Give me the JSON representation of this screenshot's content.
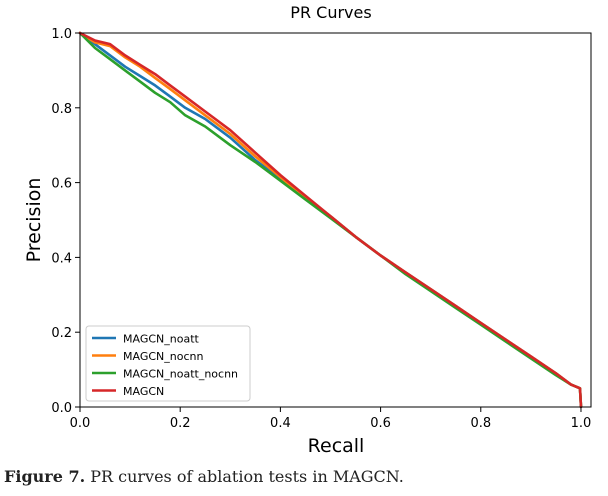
{
  "caption": {
    "label": "Figure 7.",
    "text": " PR curves of ablation tests in MAGCN."
  },
  "chart_data": {
    "type": "line",
    "title": "PR Curves",
    "xlabel": "Recall",
    "ylabel": "Precision",
    "xlim": [
      0,
      1.02
    ],
    "ylim": [
      0,
      1.0
    ],
    "xticks": [
      0.0,
      0.2,
      0.4,
      0.6,
      0.8,
      1.0
    ],
    "yticks": [
      0.0,
      0.2,
      0.4,
      0.6,
      0.8,
      1.0
    ],
    "xtick_labels": [
      "0.0",
      "0.2",
      "0.4",
      "0.6",
      "0.8",
      "1.0"
    ],
    "ytick_labels": [
      "0.0",
      "0.2",
      "0.4",
      "0.6",
      "0.8",
      "1.0"
    ],
    "legend_position": "lower-left",
    "grid": false,
    "series": [
      {
        "name": "MAGCN_noatt",
        "color": "#1f77b4",
        "x": [
          0.0,
          0.03,
          0.06,
          0.09,
          0.12,
          0.15,
          0.18,
          0.21,
          0.25,
          0.3,
          0.35,
          0.4,
          0.45,
          0.5,
          0.55,
          0.6,
          0.65,
          0.7,
          0.75,
          0.8,
          0.85,
          0.9,
          0.95,
          0.98,
          0.998,
          1.0
        ],
        "y": [
          1.0,
          0.97,
          0.94,
          0.91,
          0.885,
          0.86,
          0.83,
          0.8,
          0.77,
          0.72,
          0.66,
          0.61,
          0.56,
          0.51,
          0.455,
          0.405,
          0.36,
          0.315,
          0.27,
          0.225,
          0.18,
          0.135,
          0.09,
          0.06,
          0.05,
          0.0
        ]
      },
      {
        "name": "MAGCN_nocnn",
        "color": "#ff7f0e",
        "x": [
          0.0,
          0.03,
          0.06,
          0.09,
          0.12,
          0.15,
          0.18,
          0.21,
          0.25,
          0.3,
          0.35,
          0.4,
          0.45,
          0.5,
          0.55,
          0.6,
          0.65,
          0.7,
          0.75,
          0.8,
          0.85,
          0.9,
          0.95,
          0.98,
          0.998,
          1.0
        ],
        "y": [
          1.0,
          0.975,
          0.965,
          0.935,
          0.91,
          0.88,
          0.85,
          0.82,
          0.78,
          0.73,
          0.67,
          0.615,
          0.56,
          0.51,
          0.455,
          0.405,
          0.36,
          0.315,
          0.27,
          0.225,
          0.18,
          0.135,
          0.09,
          0.06,
          0.05,
          0.0
        ]
      },
      {
        "name": "MAGCN_noatt_nocnn",
        "color": "#2ca02c",
        "x": [
          0.0,
          0.03,
          0.06,
          0.09,
          0.12,
          0.15,
          0.18,
          0.21,
          0.25,
          0.3,
          0.35,
          0.4,
          0.45,
          0.5,
          0.55,
          0.6,
          0.65,
          0.7,
          0.75,
          0.8,
          0.85,
          0.9,
          0.95,
          0.98,
          0.998,
          1.0
        ],
        "y": [
          1.0,
          0.96,
          0.93,
          0.9,
          0.87,
          0.84,
          0.815,
          0.78,
          0.75,
          0.7,
          0.655,
          0.605,
          0.555,
          0.505,
          0.455,
          0.405,
          0.355,
          0.31,
          0.265,
          0.22,
          0.175,
          0.13,
          0.085,
          0.06,
          0.05,
          0.0
        ]
      },
      {
        "name": "MAGCN",
        "color": "#d62728",
        "x": [
          0.0,
          0.03,
          0.06,
          0.09,
          0.12,
          0.15,
          0.18,
          0.21,
          0.25,
          0.3,
          0.35,
          0.4,
          0.45,
          0.5,
          0.55,
          0.6,
          0.65,
          0.7,
          0.75,
          0.8,
          0.85,
          0.9,
          0.95,
          0.98,
          0.998,
          1.0
        ],
        "y": [
          1.0,
          0.98,
          0.97,
          0.94,
          0.915,
          0.89,
          0.86,
          0.83,
          0.79,
          0.74,
          0.68,
          0.62,
          0.565,
          0.51,
          0.455,
          0.405,
          0.36,
          0.315,
          0.27,
          0.225,
          0.18,
          0.135,
          0.09,
          0.06,
          0.05,
          0.0
        ]
      }
    ]
  }
}
